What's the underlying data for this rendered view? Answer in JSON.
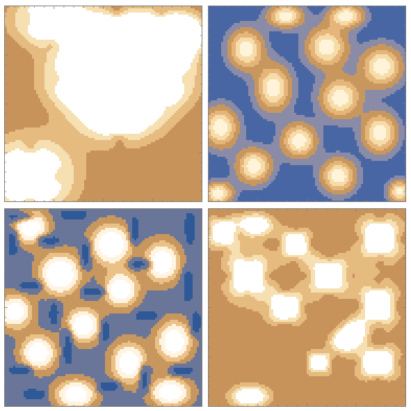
{
  "chart_data": [
    {
      "type": "heatmap",
      "panel": "top-left",
      "title": "",
      "xlabel": "",
      "ylabel": "",
      "background": "#c8935a",
      "blobs": [
        {
          "x": 0.24,
          "y": 0.93,
          "sx": 0.13,
          "sy": 0.09,
          "a": 3.1
        },
        {
          "x": 0.57,
          "y": 0.84,
          "sx": 0.15,
          "sy": 0.09,
          "a": 3.1
        },
        {
          "x": 0.79,
          "y": 0.84,
          "sx": 0.12,
          "sy": 0.09,
          "a": 3.1
        },
        {
          "x": 0.39,
          "y": 0.63,
          "sx": 0.13,
          "sy": 0.1,
          "a": 3.1
        },
        {
          "x": 0.79,
          "y": 0.63,
          "sx": 0.12,
          "sy": 0.1,
          "a": 3.1
        },
        {
          "x": 0.58,
          "y": 0.45,
          "sx": 0.15,
          "sy": 0.1,
          "a": 3.1
        },
        {
          "x": 0.92,
          "y": 0.86,
          "sx": 0.06,
          "sy": 0.06,
          "a": 2.6
        },
        {
          "x": 0.13,
          "y": 0.13,
          "sx": 0.15,
          "sy": 0.13,
          "a": 3.1
        }
      ],
      "lobes": [
        {
          "x": 0.24,
          "y": 0.93,
          "dist": 0.12,
          "d": 0.7
        },
        {
          "x": 0.57,
          "y": 0.84,
          "dist": 0.14,
          "d": 0.7
        },
        {
          "x": 0.79,
          "y": 0.84,
          "dist": 0.12,
          "d": 0.7
        },
        {
          "x": 0.39,
          "y": 0.63,
          "dist": 0.12,
          "d": 0.7
        },
        {
          "x": 0.79,
          "y": 0.63,
          "dist": 0.12,
          "d": 0.7
        },
        {
          "x": 0.58,
          "y": 0.45,
          "dist": 0.13,
          "d": 0.7
        },
        {
          "x": 0.13,
          "y": 0.13,
          "dist": 0.14,
          "d": 0.7
        }
      ],
      "palette": [
        "#44619e",
        "#c8935a",
        "#e6bb80",
        "#f6dfb0",
        "#ffffff"
      ],
      "thresholds": [
        -0.35,
        0.55,
        1.05,
        1.55
      ]
    },
    {
      "type": "heatmap",
      "panel": "top-right",
      "title": "",
      "xlabel": "",
      "ylabel": "",
      "background": "#4966a4",
      "blobs": [
        {
          "x": 0.39,
          "y": 0.95,
          "sx": 0.06,
          "sy": 0.04,
          "a": 1.3
        },
        {
          "x": 0.7,
          "y": 0.95,
          "sx": 0.06,
          "sy": 0.04,
          "a": 1.3
        },
        {
          "x": 0.19,
          "y": 0.78,
          "sx": 0.06,
          "sy": 0.07,
          "a": 1.3
        },
        {
          "x": 0.6,
          "y": 0.79,
          "sx": 0.07,
          "sy": 0.07,
          "a": 1.3
        },
        {
          "x": 0.88,
          "y": 0.69,
          "sx": 0.07,
          "sy": 0.07,
          "a": 1.3
        },
        {
          "x": 0.33,
          "y": 0.58,
          "sx": 0.06,
          "sy": 0.08,
          "a": 1.3
        },
        {
          "x": 0.67,
          "y": 0.53,
          "sx": 0.07,
          "sy": 0.07,
          "a": 1.3
        },
        {
          "x": 0.06,
          "y": 0.38,
          "sx": 0.06,
          "sy": 0.07,
          "a": 1.3
        },
        {
          "x": 0.46,
          "y": 0.31,
          "sx": 0.06,
          "sy": 0.06,
          "a": 1.3
        },
        {
          "x": 0.87,
          "y": 0.35,
          "sx": 0.06,
          "sy": 0.07,
          "a": 1.3
        },
        {
          "x": 0.23,
          "y": 0.18,
          "sx": 0.06,
          "sy": 0.06,
          "a": 1.3
        },
        {
          "x": 0.66,
          "y": 0.13,
          "sx": 0.06,
          "sy": 0.06,
          "a": 1.3
        },
        {
          "x": 0.05,
          "y": 0.04,
          "sx": 0.05,
          "sy": 0.04,
          "a": 1.3
        },
        {
          "x": 0.97,
          "y": 0.05,
          "sx": 0.04,
          "sy": 0.04,
          "a": 1.2
        }
      ],
      "palette": [
        "#4966a4",
        "#8a8ba6",
        "#c8975d",
        "#e6b57a",
        "#f6dca8",
        "#fff4da"
      ],
      "thresholds": [
        0.15,
        0.35,
        0.6,
        0.85,
        1.1
      ]
    },
    {
      "type": "heatmap",
      "panel": "bottom-left",
      "title": "",
      "xlabel": "",
      "ylabel": "",
      "background": "#6a7699",
      "blobs": [
        {
          "x": 0.13,
          "y": 0.91,
          "sx": 0.06,
          "sy": 0.06,
          "a": 1.6
        },
        {
          "x": 0.54,
          "y": 0.82,
          "sx": 0.07,
          "sy": 0.07,
          "a": 1.7
        },
        {
          "x": 0.28,
          "y": 0.67,
          "sx": 0.07,
          "sy": 0.07,
          "a": 1.8
        },
        {
          "x": 0.8,
          "y": 0.73,
          "sx": 0.06,
          "sy": 0.07,
          "a": 1.6
        },
        {
          "x": 0.05,
          "y": 0.48,
          "sx": 0.06,
          "sy": 0.06,
          "a": 1.5
        },
        {
          "x": 0.59,
          "y": 0.59,
          "sx": 0.06,
          "sy": 0.06,
          "a": 1.6
        },
        {
          "x": 0.4,
          "y": 0.41,
          "sx": 0.06,
          "sy": 0.06,
          "a": 1.6
        },
        {
          "x": 0.17,
          "y": 0.27,
          "sx": 0.06,
          "sy": 0.06,
          "a": 1.6
        },
        {
          "x": 0.63,
          "y": 0.22,
          "sx": 0.06,
          "sy": 0.07,
          "a": 1.6
        },
        {
          "x": 0.86,
          "y": 0.33,
          "sx": 0.06,
          "sy": 0.07,
          "a": 1.6
        },
        {
          "x": 0.36,
          "y": 0.06,
          "sx": 0.07,
          "sy": 0.05,
          "a": 1.6
        },
        {
          "x": 0.84,
          "y": 0.07,
          "sx": 0.07,
          "sy": 0.05,
          "a": 1.6
        }
      ],
      "streaks": [
        {
          "x": 0.08,
          "y": 0.96,
          "len": 0.12,
          "ang": 0
        },
        {
          "x": 0.35,
          "y": 0.97,
          "len": 0.12,
          "ang": 0
        },
        {
          "x": 0.04,
          "y": 0.83,
          "len": 0.12,
          "ang": 90
        },
        {
          "x": 0.22,
          "y": 0.84,
          "len": 0.1,
          "ang": 0
        },
        {
          "x": 0.41,
          "y": 0.77,
          "len": 0.12,
          "ang": 90
        },
        {
          "x": 0.66,
          "y": 0.89,
          "len": 0.12,
          "ang": 90
        },
        {
          "x": 0.94,
          "y": 0.9,
          "len": 0.14,
          "ang": 90
        },
        {
          "x": 0.69,
          "y": 0.72,
          "len": 0.1,
          "ang": 0
        },
        {
          "x": 0.93,
          "y": 0.61,
          "len": 0.14,
          "ang": 90
        },
        {
          "x": 0.45,
          "y": 0.58,
          "len": 0.1,
          "ang": 0
        },
        {
          "x": 0.13,
          "y": 0.61,
          "len": 0.1,
          "ang": 0
        },
        {
          "x": 0.25,
          "y": 0.47,
          "len": 0.1,
          "ang": 90
        },
        {
          "x": 0.72,
          "y": 0.46,
          "len": 0.1,
          "ang": 0
        },
        {
          "x": 0.51,
          "y": 0.38,
          "len": 0.1,
          "ang": 90
        },
        {
          "x": 0.32,
          "y": 0.3,
          "len": 0.16,
          "ang": 90
        },
        {
          "x": 0.08,
          "y": 0.18,
          "len": 0.1,
          "ang": 0
        },
        {
          "x": 0.53,
          "y": 0.1,
          "len": 0.1,
          "ang": 0
        },
        {
          "x": 0.71,
          "y": 0.14,
          "len": 0.12,
          "ang": 90
        },
        {
          "x": 0.9,
          "y": 0.18,
          "len": 0.1,
          "ang": 0
        },
        {
          "x": 0.15,
          "y": 0.06,
          "len": 0.1,
          "ang": 0
        },
        {
          "x": 0.97,
          "y": 0.42,
          "len": 0.1,
          "ang": 90
        }
      ],
      "palette": [
        "#2f5996",
        "#6a7699",
        "#c8975d",
        "#ebc187",
        "#fff4e2",
        "#ffffff"
      ],
      "thresholds": [
        -0.4,
        0.2,
        0.5,
        0.8,
        1.15
      ]
    },
    {
      "type": "heatmap",
      "panel": "bottom-right",
      "title": "",
      "xlabel": "",
      "ylabel": "",
      "background": "#c8935a",
      "blobs": [
        {
          "x": 0.07,
          "y": 0.88,
          "sx": 0.06,
          "sy": 0.06,
          "a": 2.9
        },
        {
          "x": 0.24,
          "y": 0.92,
          "sx": 0.06,
          "sy": 0.04,
          "a": 2.6
        },
        {
          "x": 0.44,
          "y": 0.82,
          "sx": 0.06,
          "sy": 0.06,
          "a": 2.9
        },
        {
          "x": 0.87,
          "y": 0.85,
          "sx": 0.08,
          "sy": 0.08,
          "a": 3.0
        },
        {
          "x": 0.2,
          "y": 0.66,
          "sx": 0.08,
          "sy": 0.09,
          "a": 3.0
        },
        {
          "x": 0.61,
          "y": 0.66,
          "sx": 0.08,
          "sy": 0.07,
          "a": 3.0
        },
        {
          "x": 0.39,
          "y": 0.5,
          "sx": 0.07,
          "sy": 0.06,
          "a": 3.0
        },
        {
          "x": 0.86,
          "y": 0.51,
          "sx": 0.07,
          "sy": 0.08,
          "a": 3.0
        },
        {
          "x": 0.69,
          "y": 0.33,
          "sx": 0.05,
          "sy": 0.04,
          "a": 2.5
        },
        {
          "x": 0.74,
          "y": 0.38,
          "sx": 0.04,
          "sy": 0.04,
          "a": 2.4
        },
        {
          "x": 0.56,
          "y": 0.22,
          "sx": 0.05,
          "sy": 0.05,
          "a": 2.7
        },
        {
          "x": 0.86,
          "y": 0.22,
          "sx": 0.08,
          "sy": 0.06,
          "a": 3.0
        },
        {
          "x": 0.21,
          "y": 0.05,
          "sx": 0.07,
          "sy": 0.04,
          "a": 2.6
        }
      ],
      "lobes": [
        {
          "x": 0.07,
          "y": 0.88,
          "dist": 0.08,
          "d": 0.7
        },
        {
          "x": 0.44,
          "y": 0.82,
          "dist": 0.08,
          "d": 0.7
        },
        {
          "x": 0.87,
          "y": 0.85,
          "dist": 0.1,
          "d": 0.7
        },
        {
          "x": 0.2,
          "y": 0.66,
          "dist": 0.1,
          "d": 0.7
        },
        {
          "x": 0.61,
          "y": 0.66,
          "dist": 0.1,
          "d": 0.7
        },
        {
          "x": 0.39,
          "y": 0.5,
          "dist": 0.09,
          "d": 0.7
        },
        {
          "x": 0.86,
          "y": 0.51,
          "dist": 0.1,
          "d": 0.7
        },
        {
          "x": 0.56,
          "y": 0.22,
          "dist": 0.07,
          "d": 0.6
        },
        {
          "x": 0.86,
          "y": 0.22,
          "dist": 0.1,
          "d": 0.7
        }
      ],
      "palette": [
        "#44619e",
        "#c8935a",
        "#e6bb80",
        "#f6dfb0",
        "#ffffff"
      ],
      "thresholds": [
        -0.35,
        0.55,
        1.05,
        1.55
      ]
    }
  ]
}
